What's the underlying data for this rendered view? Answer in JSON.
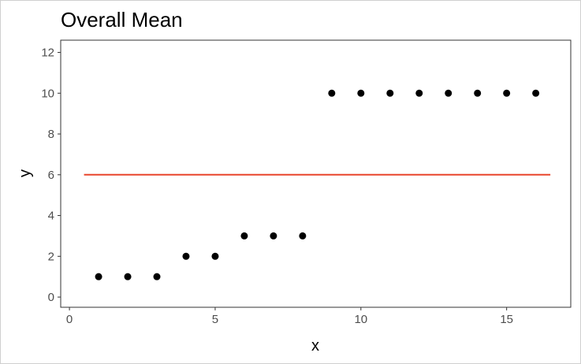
{
  "chart_data": {
    "type": "scatter",
    "title": "Overall Mean",
    "xlabel": "x",
    "ylabel": "y",
    "xlim": [
      -0.3,
      17.2
    ],
    "ylim": [
      -0.5,
      12.6
    ],
    "x_ticks": [
      0,
      5,
      10,
      15
    ],
    "y_ticks": [
      0,
      2,
      4,
      6,
      8,
      10,
      12
    ],
    "grid": false,
    "series": [
      {
        "kind": "points",
        "color": "#000000",
        "x": [
          1,
          2,
          3,
          4,
          5,
          6,
          7,
          8,
          9,
          10,
          11,
          12,
          13,
          14,
          15,
          16
        ],
        "y": [
          1,
          1,
          1,
          2,
          2,
          3,
          3,
          3,
          10,
          10,
          10,
          10,
          10,
          10,
          10,
          10
        ]
      },
      {
        "kind": "hline",
        "color": "#e8452c",
        "y": 6,
        "x_start": 0.5,
        "x_end": 16.5
      }
    ]
  }
}
